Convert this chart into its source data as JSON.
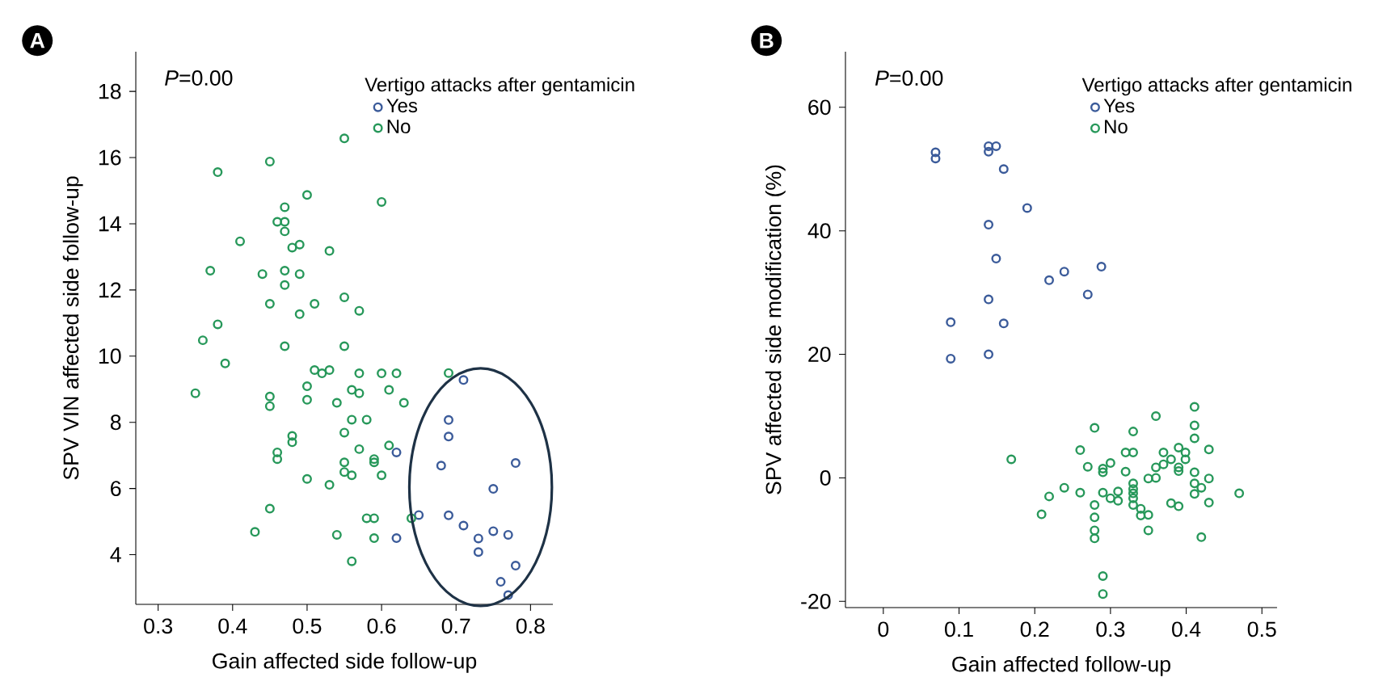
{
  "chart_data": [
    {
      "type": "scatter",
      "title": "A",
      "xlabel": "Gain affected side follow-up",
      "ylabel": "SPV VIN affected side follow-up",
      "legend_title": "Vertigo attacks after gentamicin",
      "legend": "top right",
      "marker": "circle",
      "annotations": [
        "*P*=0.00"
      ],
      "xlim": [
        0.27,
        0.83
      ],
      "ylim": [
        2.5,
        19.2
      ],
      "xticks": [
        0.3,
        0.4,
        0.5,
        0.6,
        0.7,
        0.8
      ],
      "yticks": [
        4,
        6,
        8,
        10,
        12,
        14,
        16,
        18
      ],
      "series": [
        {
          "name": "Yes",
          "color": "#3b5b9a",
          "x": [
            0.62,
            0.65,
            0.62,
            0.71,
            0.69,
            0.69,
            0.68,
            0.78,
            0.75,
            0.69,
            0.71,
            0.73,
            0.73,
            0.75,
            0.77,
            0.78,
            0.76,
            0.77
          ],
          "values": [
            7.09,
            5.2,
            4.5,
            9.28,
            8.07,
            7.57,
            6.69,
            6.77,
            5.99,
            5.19,
            4.88,
            4.49,
            4.08,
            4.71,
            4.6,
            3.67,
            3.18,
            2.78
          ]
        },
        {
          "name": "No",
          "color": "#27985a",
          "x": [
            0.55,
            0.45,
            0.38,
            0.5,
            0.6,
            0.47,
            0.46,
            0.47,
            0.47,
            0.41,
            0.49,
            0.48,
            0.53,
            0.37,
            0.44,
            0.47,
            0.49,
            0.47,
            0.45,
            0.51,
            0.55,
            0.57,
            0.49,
            0.38,
            0.36,
            0.47,
            0.55,
            0.39,
            0.51,
            0.52,
            0.53,
            0.57,
            0.6,
            0.62,
            0.5,
            0.56,
            0.57,
            0.61,
            0.35,
            0.45,
            0.45,
            0.5,
            0.54,
            0.63,
            0.56,
            0.58,
            0.55,
            0.48,
            0.48,
            0.61,
            0.57,
            0.46,
            0.46,
            0.59,
            0.59,
            0.55,
            0.55,
            0.56,
            0.5,
            0.6,
            0.53,
            0.45,
            0.58,
            0.59,
            0.64,
            0.43,
            0.54,
            0.59,
            0.56,
            0.69
          ],
          "values": [
            16.58,
            15.88,
            15.56,
            14.87,
            14.66,
            14.5,
            14.06,
            14.06,
            13.77,
            13.47,
            13.37,
            13.28,
            13.18,
            12.58,
            12.48,
            12.58,
            12.48,
            12.15,
            11.58,
            11.58,
            11.78,
            11.37,
            11.27,
            10.96,
            10.48,
            10.3,
            10.3,
            9.78,
            9.58,
            9.48,
            9.58,
            9.48,
            9.48,
            9.48,
            9.09,
            8.98,
            8.88,
            8.98,
            8.88,
            8.78,
            8.49,
            8.68,
            8.59,
            8.59,
            8.08,
            8.08,
            7.69,
            7.59,
            7.4,
            7.3,
            7.19,
            7.09,
            6.89,
            6.89,
            6.79,
            6.79,
            6.5,
            6.4,
            6.29,
            6.4,
            6.11,
            5.39,
            5.1,
            5.1,
            5.1,
            4.69,
            4.6,
            4.5,
            3.8,
            9.49
          ]
        }
      ]
    },
    {
      "type": "scatter",
      "title": "B",
      "xlabel": "Gain affected follow-up",
      "ylabel": "SPV affected side modification (%)",
      "legend_title": "Vertigo attacks after gentamicin",
      "legend": "top right",
      "marker": "circle",
      "annotations": [
        "*P*=0.00"
      ],
      "xlim": [
        -0.05,
        0.52
      ],
      "ylim": [
        -21,
        69
      ],
      "xticks": [
        0,
        0.1,
        0.2,
        0.3,
        0.4,
        0.5
      ],
      "yticks": [
        -20,
        0,
        20,
        40,
        60
      ],
      "series": [
        {
          "name": "Yes",
          "color": "#3b5b9a",
          "x": [
            0.069,
            0.069,
            0.139,
            0.149,
            0.139,
            0.159,
            0.19,
            0.139,
            0.149,
            0.219,
            0.239,
            0.27,
            0.139,
            0.089,
            0.159,
            0.089,
            0.139,
            0.288
          ],
          "values": [
            52.7,
            51.7,
            53.7,
            53.7,
            52.8,
            50.0,
            43.7,
            41.0,
            35.5,
            32.0,
            33.4,
            29.7,
            28.9,
            25.2,
            25.0,
            19.3,
            20.0,
            34.2
          ]
        },
        {
          "name": "No",
          "color": "#27985a",
          "x": [
            0.169,
            0.279,
            0.26,
            0.27,
            0.239,
            0.219,
            0.209,
            0.26,
            0.279,
            0.279,
            0.279,
            0.279,
            0.411,
            0.36,
            0.411,
            0.33,
            0.411,
            0.32,
            0.33,
            0.39,
            0.43,
            0.399,
            0.37,
            0.399,
            0.38,
            0.29,
            0.29,
            0.3,
            0.32,
            0.36,
            0.37,
            0.39,
            0.39,
            0.411,
            0.36,
            0.35,
            0.43,
            0.42,
            0.411,
            0.411,
            0.43,
            0.33,
            0.33,
            0.33,
            0.33,
            0.31,
            0.3,
            0.31,
            0.29,
            0.33,
            0.34,
            0.35,
            0.34,
            0.35,
            0.38,
            0.39,
            0.42,
            0.47,
            0.29,
            0.29
          ],
          "values": [
            3.0,
            8.1,
            4.5,
            1.8,
            -1.6,
            -3.0,
            -5.9,
            -2.4,
            -4.4,
            -6.4,
            -8.5,
            -9.8,
            11.5,
            10.0,
            8.5,
            7.5,
            6.4,
            4.1,
            4.1,
            4.9,
            4.6,
            4.1,
            4.1,
            3.0,
            3.0,
            1.5,
            0.9,
            2.4,
            1.0,
            1.7,
            2.2,
            1.7,
            1.1,
            0.9,
            0.0,
            -0.1,
            -0.1,
            -1.6,
            -0.9,
            -2.6,
            -4.0,
            -0.9,
            -1.8,
            -2.5,
            -3.3,
            -2.2,
            -3.3,
            -3.7,
            -2.4,
            -4.4,
            -5.0,
            -6.0,
            -6.1,
            -8.5,
            -4.1,
            -4.6,
            -9.6,
            -2.5,
            -15.9,
            -18.8
          ]
        }
      ]
    }
  ]
}
